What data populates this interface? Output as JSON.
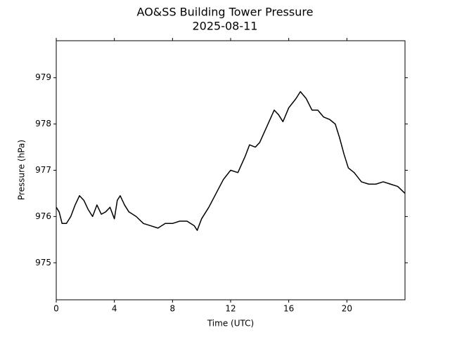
{
  "chart_data": {
    "type": "line",
    "title": "AO&SS Building Tower Pressure",
    "subtitle": "2025-08-11",
    "x_label": "Time (UTC)",
    "y_label": "Pressure (hPa)",
    "color": "#000000",
    "x": [
      0,
      0.2,
      0.4,
      0.7,
      1.0,
      1.3,
      1.6,
      1.9,
      2.2,
      2.5,
      2.8,
      3.1,
      3.4,
      3.7,
      4.0,
      4.2,
      4.4,
      4.7,
      5.0,
      5.5,
      6.0,
      6.5,
      7.0,
      7.5,
      8.0,
      8.5,
      9.0,
      9.5,
      9.7,
      10.0,
      10.5,
      11.0,
      11.5,
      12.0,
      12.5,
      13.0,
      13.3,
      13.7,
      14.0,
      14.5,
      15.0,
      15.3,
      15.6,
      16.0,
      16.5,
      16.8,
      17.2,
      17.6,
      18.0,
      18.4,
      18.8,
      19.2,
      19.5,
      19.8,
      20.1,
      20.5,
      21.0,
      21.5,
      22.0,
      22.5,
      23.0,
      23.5,
      24.0
    ],
    "values": [
      976.2,
      976.1,
      975.85,
      975.85,
      976.0,
      976.25,
      976.45,
      976.35,
      976.15,
      976.0,
      976.25,
      976.05,
      976.1,
      976.2,
      975.95,
      976.35,
      976.45,
      976.25,
      976.1,
      976.0,
      975.85,
      975.8,
      975.75,
      975.85,
      975.85,
      975.9,
      975.9,
      975.8,
      975.7,
      975.95,
      976.2,
      976.5,
      976.8,
      977.0,
      976.95,
      977.3,
      977.55,
      977.5,
      977.6,
      977.95,
      978.3,
      978.2,
      978.05,
      978.35,
      978.55,
      978.7,
      978.55,
      978.3,
      978.3,
      978.15,
      978.1,
      978.0,
      977.7,
      977.35,
      977.05,
      976.95,
      976.75,
      976.7,
      976.7,
      976.75,
      976.7,
      976.65,
      976.5
    ],
    "xlim": [
      0,
      24
    ],
    "xticks": [
      0,
      4,
      8,
      12,
      16,
      20
    ],
    "ylim": [
      974.2,
      979.8
    ],
    "yticks": [
      975,
      976,
      977,
      978,
      979
    ],
    "grid": false
  }
}
